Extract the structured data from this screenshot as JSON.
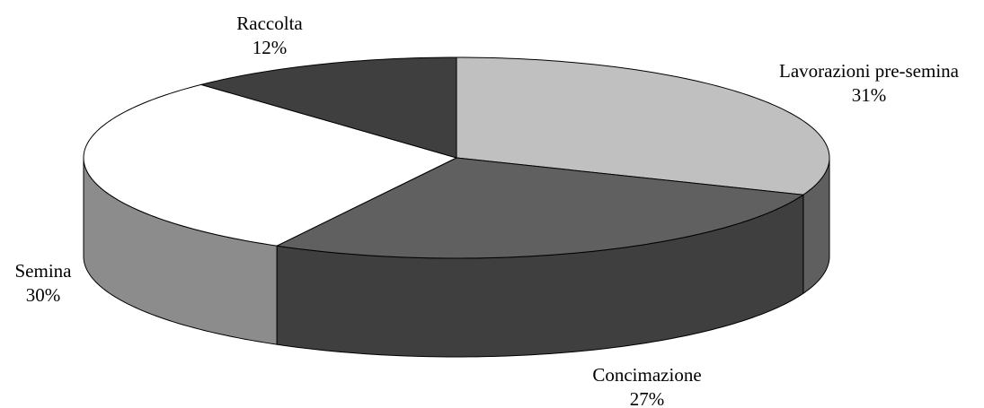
{
  "chart_data": {
    "type": "pie",
    "style": "3d",
    "start_angle": "12 o'clock, clockwise",
    "slices": [
      {
        "name": "Lavorazioni pre-semina",
        "value": 31,
        "label": "31%",
        "top_color": "#c0c0c0",
        "side_color": "#5f5f5f"
      },
      {
        "name": "Concimazione",
        "value": 27,
        "label": "27%",
        "top_color": "#606060",
        "side_color": "#3f3f3f"
      },
      {
        "name": "Semina",
        "value": 30,
        "label": "30%",
        "top_color": "#ffffff",
        "side_color": "#8c8c8c"
      },
      {
        "name": "Raccolta",
        "value": 12,
        "label": "12%",
        "top_color": "#3f3f3f",
        "side_color": "#2a2a2a"
      }
    ]
  }
}
